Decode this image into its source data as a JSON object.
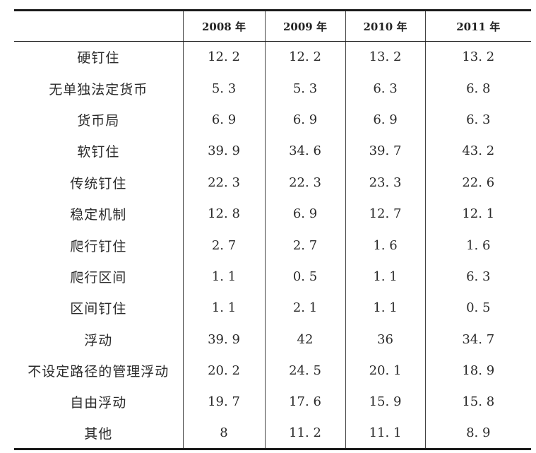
{
  "table": {
    "headers": [
      "",
      "2008 年",
      "2009 年",
      "2010 年",
      "2011 年"
    ],
    "rows": [
      {
        "label": "硬钉住",
        "values": [
          "12. 2",
          "12. 2",
          "13. 2",
          "13. 2"
        ]
      },
      {
        "label": "无单独法定货币",
        "values": [
          "5. 3",
          "5. 3",
          "6. 3",
          "6. 8"
        ]
      },
      {
        "label": "货币局",
        "values": [
          "6. 9",
          "6. 9",
          "6. 9",
          "6. 3"
        ]
      },
      {
        "label": "软钉住",
        "values": [
          "39. 9",
          "34. 6",
          "39. 7",
          "43. 2"
        ]
      },
      {
        "label": "传统钉住",
        "values": [
          "22. 3",
          "22. 3",
          "23. 3",
          "22. 6"
        ]
      },
      {
        "label": "稳定机制",
        "values": [
          "12. 8",
          "6. 9",
          "12. 7",
          "12. 1"
        ]
      },
      {
        "label": "爬行钉住",
        "values": [
          "2. 7",
          "2. 7",
          "1. 6",
          "1. 6"
        ]
      },
      {
        "label": "爬行区间",
        "values": [
          "1. 1",
          "0. 5",
          "1. 1",
          "6. 3"
        ]
      },
      {
        "label": "区间钉住",
        "values": [
          "1. 1",
          "2. 1",
          "1. 1",
          "0. 5"
        ]
      },
      {
        "label": "浮动",
        "values": [
          "39. 9",
          "42",
          "36",
          "34. 7"
        ]
      },
      {
        "label": "不设定路径的管理浮动",
        "values": [
          "20. 2",
          "24. 5",
          "20. 1",
          "18. 9"
        ]
      },
      {
        "label": "自由浮动",
        "values": [
          "19. 7",
          "17. 6",
          "15. 9",
          "15. 8"
        ]
      },
      {
        "label": "其他",
        "values": [
          "8",
          "11. 2",
          "11. 1",
          "8. 9"
        ]
      }
    ]
  }
}
